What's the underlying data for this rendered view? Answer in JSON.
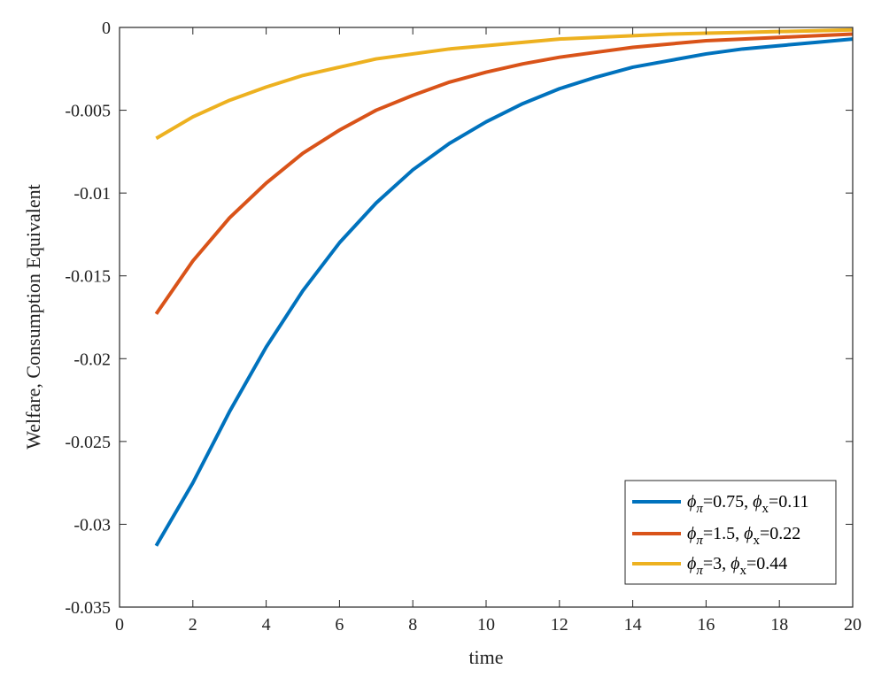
{
  "chart_data": {
    "type": "line",
    "xlabel": "time",
    "ylabel": "Welfare, Consumption Equivalent",
    "xlim": [
      0,
      20
    ],
    "ylim": [
      -0.035,
      0
    ],
    "xticks": [
      0,
      2,
      4,
      6,
      8,
      10,
      12,
      14,
      16,
      18,
      20
    ],
    "xtick_labels": [
      "0",
      "2",
      "4",
      "6",
      "8",
      "10",
      "12",
      "14",
      "16",
      "18",
      "20"
    ],
    "yticks": [
      0,
      -0.005,
      -0.01,
      -0.015,
      -0.02,
      -0.025,
      -0.03,
      -0.035
    ],
    "ytick_labels": [
      "0",
      "-0.005",
      "-0.01",
      "-0.015",
      "-0.02",
      "-0.025",
      "-0.03",
      "-0.035"
    ],
    "grid": false,
    "legend_position": "bottom-right",
    "x": [
      1,
      2,
      3,
      4,
      5,
      6,
      7,
      8,
      9,
      10,
      11,
      12,
      13,
      14,
      15,
      16,
      17,
      18,
      19,
      20
    ],
    "series": [
      {
        "phi_pi": "0.75",
        "phi_x": "0.11",
        "color": "#0072BD",
        "values": [
          -0.0313,
          -0.0275,
          -0.0232,
          -0.0193,
          -0.0159,
          -0.013,
          -0.0106,
          -0.0086,
          -0.007,
          -0.0057,
          -0.0046,
          -0.0037,
          -0.003,
          -0.0024,
          -0.002,
          -0.0016,
          -0.0013,
          -0.0011,
          -0.0009,
          -0.0007
        ]
      },
      {
        "phi_pi": "1.5",
        "phi_x": "0.22",
        "color": "#D95319",
        "values": [
          -0.0173,
          -0.0141,
          -0.0115,
          -0.0094,
          -0.0076,
          -0.0062,
          -0.005,
          -0.0041,
          -0.0033,
          -0.0027,
          -0.0022,
          -0.0018,
          -0.0015,
          -0.0012,
          -0.001,
          -0.0008,
          -0.0007,
          -0.0006,
          -0.0005,
          -0.0004
        ]
      },
      {
        "phi_pi": "3",
        "phi_x": "0.44",
        "color": "#EDB120",
        "values": [
          -0.0067,
          -0.0054,
          -0.0044,
          -0.0036,
          -0.0029,
          -0.0024,
          -0.0019,
          -0.0016,
          -0.0013,
          -0.0011,
          -0.0009,
          -0.0007,
          -0.0006,
          -0.0005,
          -0.0004,
          -0.00035,
          -0.0003,
          -0.00025,
          -0.0002,
          -0.00015
        ]
      }
    ]
  }
}
